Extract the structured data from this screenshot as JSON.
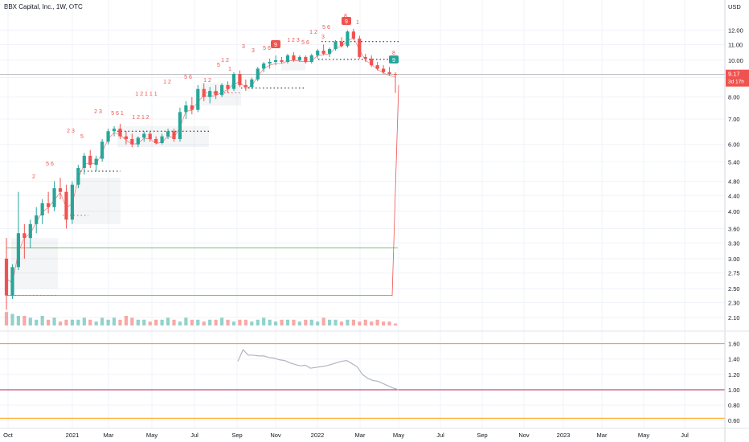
{
  "header": {
    "title": "BBX Capital, Inc., 1W, OTC",
    "currency": "USD"
  },
  "price_axis": {
    "ticks": [
      "12.00",
      "11.00",
      "10.00",
      "9.00",
      "8.00",
      "7.00",
      "6.00",
      "5.40",
      "4.80",
      "4.40",
      "4.00",
      "3.60",
      "3.30",
      "3.00",
      "2.75",
      "2.50",
      "2.30",
      "2.10"
    ],
    "last_price": "9.17",
    "countdown": "3d 17h"
  },
  "indicator_axis": {
    "ticks": [
      "1.60",
      "1.40",
      "1.20",
      "1.00",
      "0.80",
      "0.60"
    ]
  },
  "time_axis": {
    "labels": [
      "Oct",
      "2021",
      "Mar",
      "May",
      "Jul",
      "Sep",
      "Nov",
      "2022",
      "Mar",
      "May",
      "Jul",
      "Sep",
      "Nov",
      "2023",
      "Mar",
      "May",
      "Jul"
    ]
  },
  "annotations": {
    "sequential_labels": [
      "2",
      "5 6",
      "2 3",
      "5",
      "2 3",
      "5 6 1",
      "1 2 1 2",
      "1 2",
      "5 6",
      "1 2 1 1 1",
      "1 2",
      "5",
      "1",
      "2",
      "3",
      "1 2",
      "3",
      "5 6",
      "1 2 3",
      "5 6",
      "1 2",
      "3",
      "5 6",
      "8",
      "1",
      "8"
    ],
    "count_badges": [
      {
        "text": "9",
        "color": "#ef5350"
      },
      {
        "text": "9",
        "color": "#ef5350"
      },
      {
        "text": "9",
        "color": "#26a69a"
      }
    ]
  },
  "colors": {
    "up": "#26a69a",
    "down": "#ef5350",
    "grid": "#f0f3fa",
    "support_line": "#4caf50",
    "indicator_line": "#b2b5be",
    "orange_levels": "#ff9800",
    "red_level": "#c2185b"
  },
  "chart_data": {
    "type": "candlestick",
    "symbol": "BBX Capital, Inc.",
    "interval": "1W",
    "exchange": "OTC",
    "scale": "log",
    "ylim": [
      2.0,
      13.2
    ],
    "last_close": 9.17,
    "horizontal_levels": [
      3.2,
      2.4
    ],
    "indicator": {
      "ylim": [
        0.55,
        1.7
      ],
      "levels": [
        1.6,
        1.0,
        0.63
      ],
      "values": [
        1.37,
        1.52,
        1.45,
        1.45,
        1.44,
        1.44,
        1.42,
        1.41,
        1.39,
        1.38,
        1.35,
        1.33,
        1.31,
        1.32,
        1.28,
        1.29,
        1.3,
        1.31,
        1.33,
        1.35,
        1.37,
        1.38,
        1.34,
        1.3,
        1.2,
        1.15,
        1.12,
        1.11,
        1.08,
        1.05,
        1.02,
        1.0
      ]
    },
    "candles": [
      {
        "o": 3.0,
        "h": 3.4,
        "l": 2.2,
        "c": 2.4
      },
      {
        "o": 2.4,
        "h": 2.9,
        "l": 2.35,
        "c": 2.85
      },
      {
        "o": 2.85,
        "h": 4.5,
        "l": 2.8,
        "c": 3.5
      },
      {
        "o": 3.5,
        "h": 3.7,
        "l": 3.0,
        "c": 3.4
      },
      {
        "o": 3.4,
        "h": 3.8,
        "l": 3.2,
        "c": 3.7
      },
      {
        "o": 3.7,
        "h": 4.1,
        "l": 3.5,
        "c": 3.9
      },
      {
        "o": 3.9,
        "h": 4.3,
        "l": 3.7,
        "c": 4.2
      },
      {
        "o": 4.2,
        "h": 4.5,
        "l": 3.95,
        "c": 4.1
      },
      {
        "o": 4.1,
        "h": 4.8,
        "l": 4.0,
        "c": 4.6
      },
      {
        "o": 4.6,
        "h": 4.9,
        "l": 4.3,
        "c": 4.5
      },
      {
        "o": 4.5,
        "h": 4.7,
        "l": 3.6,
        "c": 3.8
      },
      {
        "o": 3.8,
        "h": 4.8,
        "l": 3.7,
        "c": 4.7
      },
      {
        "o": 4.7,
        "h": 5.3,
        "l": 4.6,
        "c": 5.2
      },
      {
        "o": 5.2,
        "h": 5.7,
        "l": 5.0,
        "c": 5.6
      },
      {
        "o": 5.6,
        "h": 5.8,
        "l": 5.2,
        "c": 5.3
      },
      {
        "o": 5.3,
        "h": 5.6,
        "l": 5.1,
        "c": 5.5
      },
      {
        "o": 5.5,
        "h": 6.2,
        "l": 5.4,
        "c": 6.1
      },
      {
        "o": 6.1,
        "h": 6.6,
        "l": 6.0,
        "c": 6.5
      },
      {
        "o": 6.5,
        "h": 6.7,
        "l": 6.3,
        "c": 6.6
      },
      {
        "o": 6.6,
        "h": 6.8,
        "l": 6.2,
        "c": 6.3
      },
      {
        "o": 6.3,
        "h": 6.5,
        "l": 6.0,
        "c": 6.2
      },
      {
        "o": 6.2,
        "h": 6.4,
        "l": 5.9,
        "c": 6.0
      },
      {
        "o": 6.0,
        "h": 6.3,
        "l": 5.9,
        "c": 6.25
      },
      {
        "o": 6.25,
        "h": 6.5,
        "l": 6.1,
        "c": 6.4
      },
      {
        "o": 6.4,
        "h": 6.5,
        "l": 6.1,
        "c": 6.2
      },
      {
        "o": 6.2,
        "h": 6.3,
        "l": 6.0,
        "c": 6.05
      },
      {
        "o": 6.05,
        "h": 6.4,
        "l": 6.0,
        "c": 6.3
      },
      {
        "o": 6.3,
        "h": 6.6,
        "l": 6.2,
        "c": 6.5
      },
      {
        "o": 6.5,
        "h": 6.6,
        "l": 6.1,
        "c": 6.2
      },
      {
        "o": 6.2,
        "h": 7.5,
        "l": 6.1,
        "c": 7.3
      },
      {
        "o": 7.3,
        "h": 7.8,
        "l": 7.0,
        "c": 7.6
      },
      {
        "o": 7.6,
        "h": 8.0,
        "l": 7.2,
        "c": 7.4
      },
      {
        "o": 7.4,
        "h": 8.6,
        "l": 7.3,
        "c": 8.4
      },
      {
        "o": 8.4,
        "h": 8.7,
        "l": 7.8,
        "c": 8.0
      },
      {
        "o": 8.0,
        "h": 8.5,
        "l": 7.7,
        "c": 8.3
      },
      {
        "o": 8.3,
        "h": 8.6,
        "l": 7.9,
        "c": 8.1
      },
      {
        "o": 8.1,
        "h": 8.7,
        "l": 8.0,
        "c": 8.6
      },
      {
        "o": 8.6,
        "h": 8.8,
        "l": 8.2,
        "c": 8.4
      },
      {
        "o": 8.4,
        "h": 9.3,
        "l": 8.3,
        "c": 9.2
      },
      {
        "o": 9.2,
        "h": 9.4,
        "l": 8.5,
        "c": 8.6
      },
      {
        "o": 8.6,
        "h": 8.9,
        "l": 8.3,
        "c": 8.5
      },
      {
        "o": 8.5,
        "h": 9.0,
        "l": 8.4,
        "c": 8.9
      },
      {
        "o": 8.9,
        "h": 9.6,
        "l": 8.8,
        "c": 9.5
      },
      {
        "o": 9.5,
        "h": 9.9,
        "l": 9.3,
        "c": 9.8
      },
      {
        "o": 9.8,
        "h": 10.1,
        "l": 9.5,
        "c": 9.9
      },
      {
        "o": 9.9,
        "h": 10.3,
        "l": 9.7,
        "c": 10.0
      },
      {
        "o": 10.0,
        "h": 10.2,
        "l": 9.8,
        "c": 9.9
      },
      {
        "o": 9.9,
        "h": 10.4,
        "l": 9.8,
        "c": 10.3
      },
      {
        "o": 10.3,
        "h": 10.5,
        "l": 9.9,
        "c": 10.0
      },
      {
        "o": 10.0,
        "h": 10.3,
        "l": 9.9,
        "c": 10.2
      },
      {
        "o": 10.2,
        "h": 10.3,
        "l": 9.8,
        "c": 9.9
      },
      {
        "o": 9.9,
        "h": 10.4,
        "l": 9.8,
        "c": 10.3
      },
      {
        "o": 10.3,
        "h": 10.7,
        "l": 10.1,
        "c": 10.6
      },
      {
        "o": 10.6,
        "h": 11.0,
        "l": 10.3,
        "c": 10.4
      },
      {
        "o": 10.4,
        "h": 10.8,
        "l": 10.2,
        "c": 10.7
      },
      {
        "o": 10.7,
        "h": 11.3,
        "l": 10.6,
        "c": 11.2
      },
      {
        "o": 11.2,
        "h": 11.5,
        "l": 10.8,
        "c": 10.9
      },
      {
        "o": 10.9,
        "h": 12.0,
        "l": 10.8,
        "c": 11.9
      },
      {
        "o": 11.9,
        "h": 12.1,
        "l": 11.3,
        "c": 11.4
      },
      {
        "o": 11.4,
        "h": 11.6,
        "l": 10.1,
        "c": 10.2
      },
      {
        "o": 10.2,
        "h": 10.4,
        "l": 9.9,
        "c": 10.1
      },
      {
        "o": 10.1,
        "h": 10.3,
        "l": 9.6,
        "c": 9.7
      },
      {
        "o": 9.7,
        "h": 9.9,
        "l": 9.4,
        "c": 9.5
      },
      {
        "o": 9.5,
        "h": 9.7,
        "l": 9.2,
        "c": 9.3
      },
      {
        "o": 9.3,
        "h": 9.6,
        "l": 9.1,
        "c": 9.2
      },
      {
        "o": 9.2,
        "h": 9.3,
        "l": 8.2,
        "c": 9.17
      }
    ],
    "volume": [
      7,
      6,
      5,
      5,
      4,
      3,
      5,
      3,
      4,
      2,
      3,
      3,
      3,
      4,
      3,
      2,
      4,
      3,
      4,
      3,
      5,
      4,
      3,
      3,
      2,
      3,
      3,
      4,
      3,
      2,
      4,
      3,
      3,
      2,
      3,
      3,
      4,
      3,
      2,
      3,
      3,
      2,
      3,
      4,
      3,
      2,
      3,
      3,
      3,
      2,
      3,
      3,
      2,
      4,
      3,
      3,
      2,
      3,
      3,
      2,
      3,
      2,
      3,
      2,
      2,
      1
    ]
  }
}
